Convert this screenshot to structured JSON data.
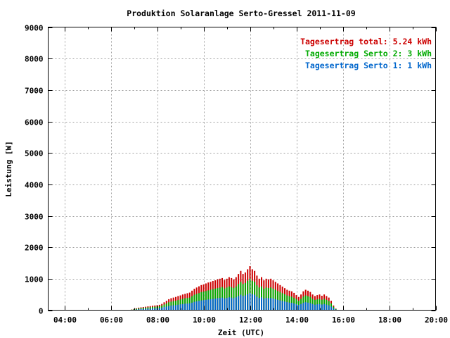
{
  "chart_data": {
    "type": "bar",
    "title": "Produktion Solaranlage Serto-Gressel 2011-11-09",
    "xlabel": "Zeit (UTC)",
    "ylabel": "Leistung [W]",
    "xlim": [
      3.3,
      20.0
    ],
    "ylim": [
      0,
      9000
    ],
    "x_ticks": [
      "04:00",
      "06:00",
      "08:00",
      "10:00",
      "12:00",
      "14:00",
      "16:00",
      "18:00",
      "20:00"
    ],
    "x_tick_values": [
      4,
      6,
      8,
      10,
      12,
      14,
      16,
      18,
      20
    ],
    "y_ticks": [
      "0",
      "1000",
      "2000",
      "3000",
      "4000",
      "5000",
      "6000",
      "7000",
      "8000",
      "9000"
    ],
    "y_tick_values": [
      0,
      1000,
      2000,
      3000,
      4000,
      5000,
      6000,
      7000,
      8000,
      9000
    ],
    "grid": true,
    "legend_position": "top-right",
    "legend": [
      {
        "text": "Tagesertrag total: 5.24 kWh",
        "color": "#cc0000"
      },
      {
        "text": "Tagesertrag Serto 2: 3 kWh",
        "color": "#00aa00"
      },
      {
        "text": "Tagesertrag Serto 1: 1 kWh",
        "color": "#0066cc"
      }
    ],
    "series_colors": {
      "total": "#cc0000",
      "serto2": "#00aa00",
      "serto1": "#0066cc"
    },
    "x": [
      6.9,
      7.0,
      7.1,
      7.2,
      7.3,
      7.4,
      7.5,
      7.6,
      7.7,
      7.8,
      7.9,
      8.0,
      8.1,
      8.2,
      8.3,
      8.4,
      8.5,
      8.6,
      8.7,
      8.8,
      8.9,
      9.0,
      9.1,
      9.2,
      9.3,
      9.4,
      9.5,
      9.6,
      9.7,
      9.8,
      9.9,
      10.0,
      10.1,
      10.2,
      10.3,
      10.4,
      10.5,
      10.6,
      10.7,
      10.8,
      10.9,
      11.0,
      11.1,
      11.2,
      11.3,
      11.4,
      11.5,
      11.6,
      11.7,
      11.8,
      11.9,
      12.0,
      12.1,
      12.2,
      12.3,
      12.4,
      12.5,
      12.6,
      12.7,
      12.8,
      12.9,
      13.0,
      13.1,
      13.2,
      13.3,
      13.4,
      13.5,
      13.6,
      13.7,
      13.8,
      13.9,
      14.0,
      14.1,
      14.2,
      14.3,
      14.4,
      14.5,
      14.6,
      14.7,
      14.8,
      14.9,
      15.0,
      15.1,
      15.2,
      15.3,
      15.4,
      15.5,
      15.6,
      15.7
    ],
    "series": [
      {
        "name": "total",
        "values": [
          20,
          40,
          60,
          80,
          90,
          100,
          110,
          120,
          130,
          140,
          150,
          160,
          170,
          200,
          250,
          300,
          350,
          380,
          400,
          420,
          450,
          470,
          500,
          520,
          540,
          560,
          620,
          680,
          720,
          760,
          800,
          820,
          850,
          880,
          900,
          930,
          950,
          980,
          1000,
          1020,
          960,
          1000,
          1050,
          1020,
          980,
          1050,
          1150,
          1250,
          1150,
          1200,
          1300,
          1400,
          1300,
          1250,
          1100,
          1000,
          1050,
          950,
          1000,
          980,
          1000,
          950,
          900,
          850,
          800,
          750,
          700,
          650,
          620,
          600,
          550,
          480,
          420,
          500,
          600,
          650,
          620,
          580,
          500,
          450,
          480,
          500,
          460,
          500,
          450,
          400,
          300,
          150,
          50
        ]
      },
      {
        "name": "Serto 2",
        "values": [
          15,
          30,
          45,
          55,
          65,
          75,
          80,
          90,
          95,
          100,
          110,
          115,
          125,
          145,
          180,
          215,
          250,
          270,
          290,
          300,
          320,
          340,
          360,
          380,
          390,
          400,
          445,
          490,
          520,
          545,
          575,
          590,
          610,
          630,
          650,
          670,
          685,
          705,
          720,
          735,
          690,
          720,
          755,
          735,
          705,
          755,
          830,
          900,
          830,
          865,
          935,
          1000,
          935,
          900,
          790,
          720,
          755,
          685,
          720,
          705,
          720,
          685,
          650,
          610,
          575,
          540,
          505,
          470,
          445,
          430,
          395,
          345,
          300,
          360,
          430,
          470,
          445,
          420,
          360,
          325,
          345,
          360,
          330,
          360,
          325,
          290,
          215,
          110,
          35
        ]
      },
      {
        "name": "Serto 1",
        "values": [
          5,
          15,
          20,
          30,
          35,
          40,
          45,
          50,
          50,
          55,
          60,
          65,
          70,
          80,
          100,
          115,
          135,
          145,
          155,
          160,
          175,
          185,
          195,
          205,
          210,
          220,
          240,
          265,
          280,
          295,
          310,
          320,
          330,
          340,
          350,
          360,
          370,
          380,
          390,
          400,
          375,
          390,
          410,
          400,
          380,
          410,
          450,
          490,
          450,
          470,
          505,
          545,
          505,
          490,
          430,
          390,
          410,
          370,
          390,
          380,
          390,
          370,
          350,
          330,
          310,
          290,
          275,
          255,
          240,
          235,
          215,
          185,
          165,
          195,
          235,
          255,
          240,
          225,
          195,
          175,
          185,
          195,
          180,
          195,
          175,
          155,
          115,
          60,
          20
        ]
      }
    ]
  }
}
